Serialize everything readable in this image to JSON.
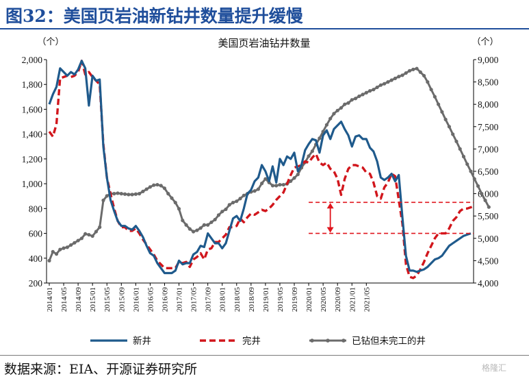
{
  "figure_title": "图32：美国页岩油新钻井数量提升缓慢",
  "source": "数据来源：EIA、开源证券研究所",
  "watermark": "格隆汇",
  "colors": {
    "new": "#1f5a8c",
    "completed": "#d1161c",
    "duc": "#6b6b6b",
    "title": "#1f4e9b",
    "guide": "#e0151d"
  },
  "chart_data": {
    "type": "line",
    "title": "美国页岩油钻井数量",
    "left_unit": "（个）",
    "right_unit": "（个）",
    "left_ylim": [
      200,
      2000
    ],
    "left_ticks": [
      "200",
      "400",
      "600",
      "800",
      "1,000",
      "1,200",
      "1,400",
      "1,600",
      "1,800",
      "2,000"
    ],
    "right_ylim": [
      4000,
      9000
    ],
    "right_ticks": [
      "4,000",
      "4,500",
      "5,000",
      "5,500",
      "6,000",
      "6,500",
      "7,000",
      "7,500",
      "8,000",
      "8,500",
      "9,000"
    ],
    "x_start": "2014/01",
    "x_tick_labels": [
      "2014/01",
      "2014/05",
      "2014/09",
      "2015/01",
      "2015/05",
      "2015/09",
      "2016/01",
      "2016/05",
      "2016/09",
      "2017/01",
      "2017/05",
      "2017/09",
      "2018/01",
      "2018/05",
      "2018/09",
      "2019/01",
      "2019/05",
      "2019/09",
      "2020/01",
      "2020/05",
      "2020/09",
      "2021/01",
      "2021/05"
    ],
    "legend": [
      "新井",
      "完井",
      "已钻但未完工的井"
    ],
    "series": [
      {
        "name": "新井",
        "axis": "left",
        "style": "solid",
        "values": [
          1640,
          1720,
          1780,
          1930,
          1900,
          1870,
          1900,
          1880,
          1920,
          1990,
          1930,
          1630,
          1870,
          1830,
          1840,
          1300,
          1050,
          870,
          780,
          700,
          660,
          660,
          640,
          630,
          660,
          620,
          570,
          500,
          440,
          420,
          360,
          320,
          280,
          280,
          280,
          300,
          380,
          350,
          360,
          360,
          430,
          450,
          500,
          490,
          600,
          560,
          520,
          520,
          480,
          520,
          620,
          720,
          740,
          700,
          800,
          920,
          950,
          1020,
          1050,
          1150,
          1100,
          1020,
          1140,
          1010,
          1200,
          1150,
          1220,
          1200,
          1250,
          1100,
          1150,
          1270,
          1320,
          1360,
          1350,
          1250,
          1390,
          1430,
          1360,
          1440,
          1470,
          1500,
          1440,
          1390,
          1300,
          1380,
          1390,
          1360,
          1360,
          1290,
          1260,
          1180,
          1050,
          1030,
          1050,
          1080,
          1020,
          1070,
          730,
          420,
          300,
          300,
          290,
          300,
          310,
          330,
          360,
          390,
          400,
          420,
          460,
          500,
          520,
          540,
          560,
          580,
          590,
          600
        ]
      },
      {
        "name": "完井",
        "axis": "left",
        "style": "dashed",
        "values": [
          1420,
          1380,
          1480,
          1850,
          1860,
          1870,
          1860,
          1870,
          1900,
          1990,
          1880,
          1900,
          1860,
          1830,
          1800,
          1320,
          1050,
          920,
          800,
          700,
          650,
          650,
          620,
          620,
          640,
          600,
          550,
          510,
          470,
          430,
          380,
          350,
          320,
          320,
          320,
          320,
          370,
          360,
          370,
          330,
          390,
          410,
          440,
          390,
          470,
          480,
          530,
          530,
          560,
          590,
          650,
          650,
          660,
          720,
          690,
          730,
          760,
          750,
          770,
          790,
          780,
          800,
          830,
          870,
          900,
          930,
          1000,
          1070,
          1130,
          1140,
          1150,
          1180,
          1170,
          1210,
          1240,
          1170,
          1150,
          1170,
          1120,
          1100,
          1040,
          910,
          1040,
          1120,
          1150,
          1150,
          1140,
          1130,
          1090,
          1080,
          1010,
          900,
          880,
          970,
          1010,
          1080,
          1060,
          870,
          680,
          350,
          250,
          240,
          260,
          310,
          370,
          440,
          500,
          560,
          600,
          600,
          600,
          640,
          700,
          730,
          780,
          800,
          800,
          810,
          820
        ]
      },
      {
        "name": "已钻但未完工的井",
        "axis": "right",
        "style": "line-marker",
        "values": [
          4500,
          4700,
          4650,
          4750,
          4780,
          4800,
          4850,
          4900,
          4950,
          5000,
          5100,
          5080,
          5050,
          5150,
          5250,
          5850,
          5950,
          6000,
          6000,
          6010,
          6000,
          5990,
          5980,
          5980,
          5990,
          6000,
          6050,
          6100,
          6150,
          6190,
          6200,
          6180,
          6120,
          6000,
          5900,
          5800,
          5660,
          5400,
          5300,
          5210,
          5150,
          5180,
          5230,
          5300,
          5300,
          5360,
          5420,
          5520,
          5600,
          5650,
          5750,
          5800,
          5830,
          5890,
          5960,
          6000,
          6040,
          6060,
          6100,
          6230,
          6330,
          6250,
          6180,
          6180,
          6200,
          6200,
          6220,
          6280,
          6350,
          6430,
          6580,
          6700,
          6840,
          6950,
          7100,
          7240,
          7390,
          7540,
          7680,
          7790,
          7860,
          7920,
          8000,
          8030,
          8100,
          8130,
          8180,
          8220,
          8260,
          8300,
          8330,
          8380,
          8430,
          8460,
          8500,
          8540,
          8580,
          8620,
          8650,
          8700,
          8750,
          8780,
          8800,
          8720,
          8640,
          8500,
          8330,
          8170,
          8000,
          7830,
          7660,
          7500,
          7330,
          7170,
          7000,
          6830,
          6660,
          6500,
          6330,
          6170,
          6000,
          5850,
          5700
        ]
      }
    ],
    "annotation": {
      "upper_level": 850,
      "lower_level": 600,
      "start": "2020/01"
    }
  }
}
